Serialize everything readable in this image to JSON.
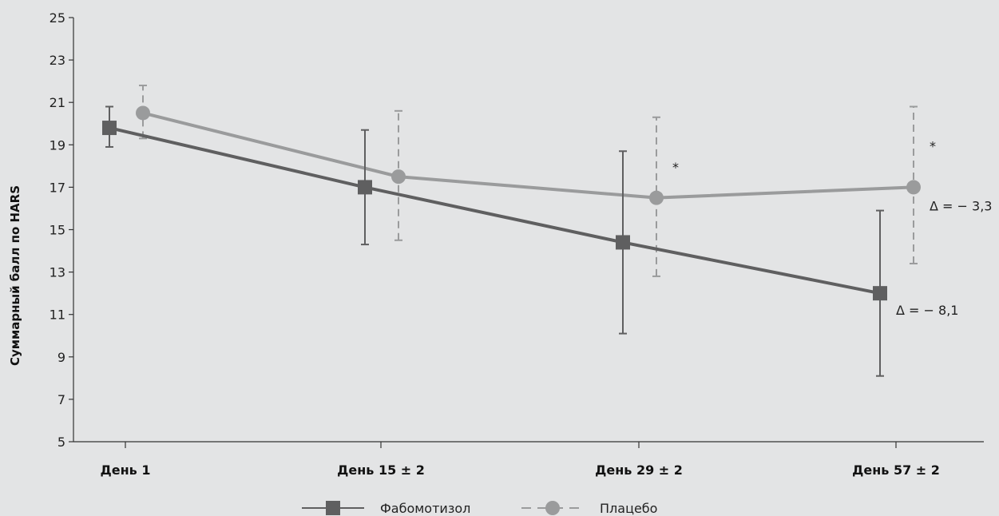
{
  "chart_data": {
    "type": "line",
    "title": "",
    "xlabel": "",
    "ylabel": "Суммарный балл по HARS",
    "ylim": [
      5,
      25
    ],
    "yticks": [
      5,
      7,
      9,
      11,
      13,
      15,
      17,
      19,
      21,
      23,
      25
    ],
    "categories": [
      "День 1",
      "День 15 ± 2",
      "День 29 ± 2",
      "День 57 ± 2"
    ],
    "grid": false,
    "legend_position": "bottom-center",
    "series": [
      {
        "name": "Фабомотизол",
        "marker": "square",
        "line_style": "solid",
        "color": "#5f5f60",
        "values": [
          19.8,
          17.0,
          14.4,
          12.0
        ],
        "error_low": [
          18.9,
          14.3,
          10.1,
          8.1
        ],
        "error_high": [
          20.8,
          19.7,
          18.7,
          15.9
        ],
        "end_label": "Δ = − 8,1"
      },
      {
        "name": "Плацебо",
        "marker": "circle",
        "line_style": "dashed",
        "color": "#9a9b9c",
        "values": [
          20.5,
          17.5,
          16.5,
          17.0
        ],
        "error_low": [
          19.3,
          14.5,
          12.8,
          13.4
        ],
        "error_high": [
          21.8,
          20.6,
          20.3,
          20.8
        ],
        "end_label": "Δ = − 3,3"
      }
    ],
    "annotations": [
      {
        "text": "*",
        "category_index": 2,
        "y": 18.1
      },
      {
        "text": "*",
        "category_index": 3,
        "y": 19.1
      }
    ]
  }
}
